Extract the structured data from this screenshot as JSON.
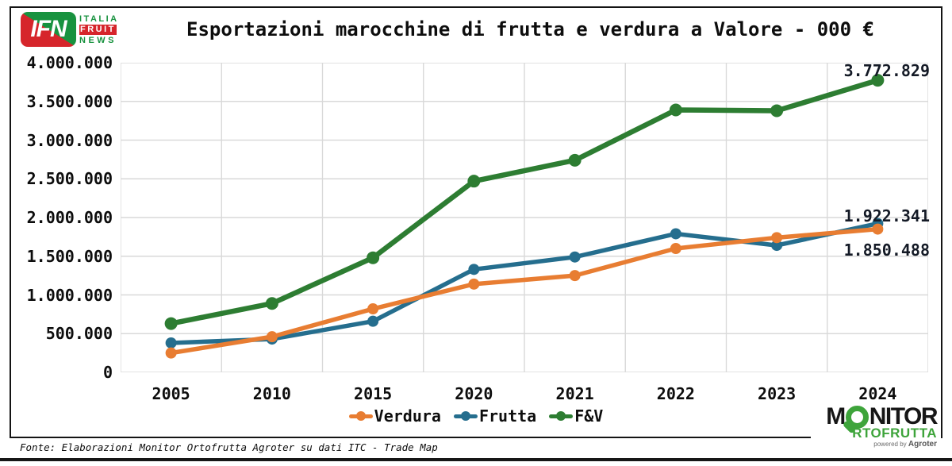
{
  "header": {
    "logo": {
      "ifn": "IFN",
      "italia": "ITALIA",
      "fruit": "FRUIT",
      "news": "NEWS"
    },
    "title": "Esportazioni marocchine di frutta e verdura a Valore - 000 €"
  },
  "chart_data": {
    "type": "line",
    "title": "Esportazioni marocchine di frutta e verdura a Valore - 000 €",
    "categories": [
      "2005",
      "2010",
      "2015",
      "2020",
      "2021",
      "2022",
      "2023",
      "2024"
    ],
    "series": [
      {
        "name": "Verdura",
        "color": "#E87D32",
        "values": [
          250000,
          460000,
          820000,
          1140000,
          1250000,
          1600000,
          1740000,
          1850488
        ]
      },
      {
        "name": "Frutta",
        "color": "#256E8E",
        "values": [
          380000,
          430000,
          660000,
          1330000,
          1490000,
          1790000,
          1640000,
          1922341
        ]
      },
      {
        "name": "F&V",
        "color": "#2D7D32",
        "values": [
          630000,
          890000,
          1480000,
          2470000,
          2740000,
          3390000,
          3380000,
          3772829
        ]
      }
    ],
    "end_labels": [
      {
        "series": "F&V",
        "text": "3.772.829"
      },
      {
        "series": "Frutta",
        "text": "1.922.341"
      },
      {
        "series": "Verdura",
        "text": "1.850.488"
      }
    ],
    "y_ticks": [
      "4.000.000",
      "3.500.000",
      "3.000.000",
      "2.500.000",
      "2.000.000",
      "1.500.000",
      "1.000.000",
      "500.000",
      "0"
    ],
    "ylim": [
      0,
      4000000
    ],
    "grid": true,
    "gridline_color": "#D9D9D9",
    "legend_position": "bottom"
  },
  "footer": {
    "source": "Fonte: Elaborazioni Monitor Ortofrutta Agroter su dati ITC - Trade Map",
    "monitor_logo": {
      "m": "M",
      "nitor": "NITOR",
      "line2": "RTOFRUTTA",
      "powered_by": "powered by",
      "agroter": "Agroter"
    }
  }
}
